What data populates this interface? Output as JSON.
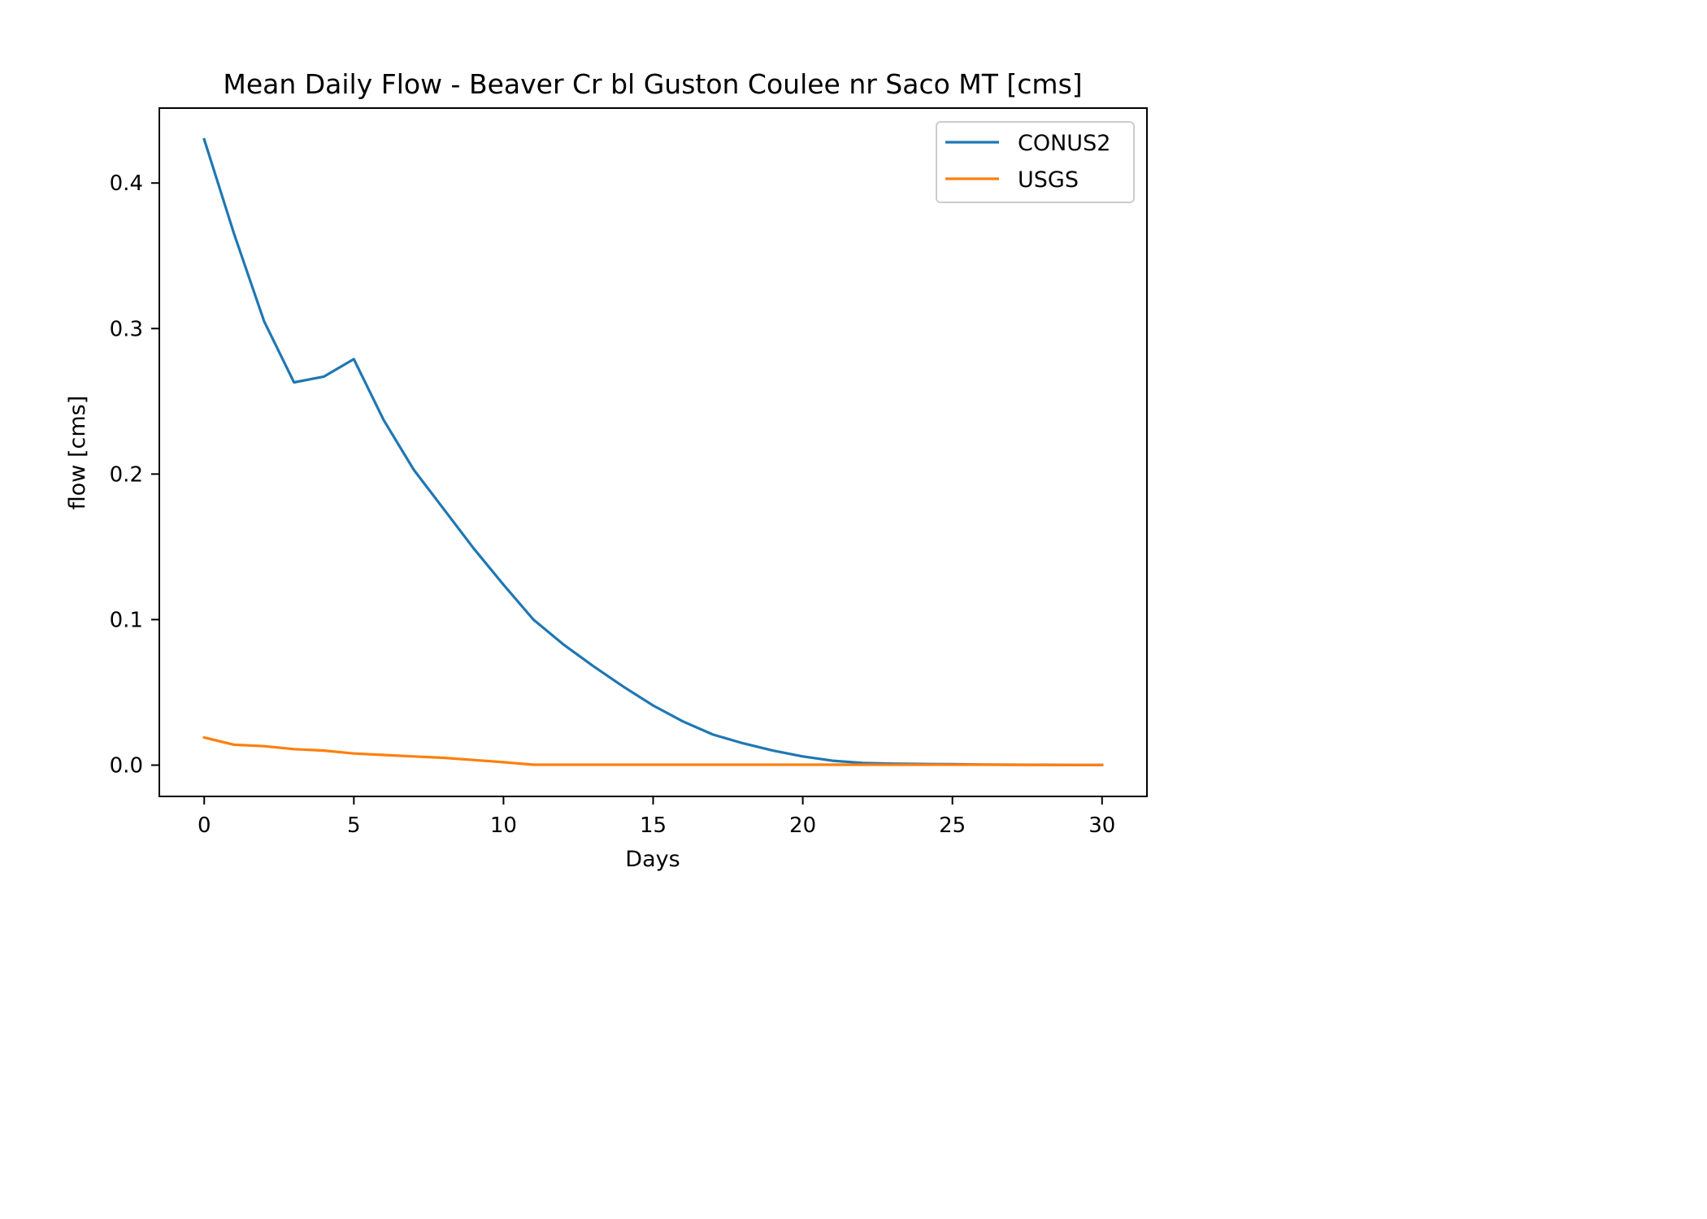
{
  "chart_data": {
    "type": "line",
    "title": "Mean Daily Flow - Beaver Cr bl Guston Coulee nr Saco MT [cms]",
    "xlabel": "Days",
    "ylabel": "flow [cms]",
    "xlim": [
      -1.5,
      31.5
    ],
    "ylim": [
      -0.0215,
      0.4515
    ],
    "xticks": [
      0,
      5,
      10,
      15,
      20,
      25,
      30
    ],
    "xtick_labels": [
      "0",
      "5",
      "10",
      "15",
      "20",
      "25",
      "30"
    ],
    "yticks": [
      0.0,
      0.1,
      0.2,
      0.3,
      0.4
    ],
    "ytick_labels": [
      "0.0",
      "0.1",
      "0.2",
      "0.3",
      "0.4"
    ],
    "grid": false,
    "legend_position": "top-right",
    "x": [
      0,
      1,
      2,
      3,
      4,
      5,
      6,
      7,
      8,
      9,
      10,
      11,
      12,
      13,
      14,
      15,
      16,
      17,
      18,
      19,
      20,
      21,
      22,
      23,
      24,
      25,
      26,
      27,
      28,
      29,
      30
    ],
    "series": [
      {
        "name": "CONUS2",
        "color": "#1f77b4",
        "values": [
          0.43,
          0.365,
          0.305,
          0.263,
          0.267,
          0.279,
          0.237,
          0.203,
          0.176,
          0.149,
          0.124,
          0.1,
          0.083,
          0.068,
          0.054,
          0.041,
          0.03,
          0.021,
          0.015,
          0.01,
          0.006,
          0.003,
          0.0015,
          0.001,
          0.0008,
          0.0006,
          0.0004,
          0.0003,
          0.0002,
          0.0001,
          0.0001
        ]
      },
      {
        "name": "USGS",
        "color": "#ff7f0e",
        "values": [
          0.019,
          0.014,
          0.013,
          0.011,
          0.01,
          0.008,
          0.007,
          0.006,
          0.005,
          0.0035,
          0.002,
          0.0003,
          0.0003,
          0.0003,
          0.0003,
          0.0003,
          0.0003,
          0.0003,
          0.0003,
          0.0003,
          0.0003,
          0.0003,
          0.0003,
          0.0003,
          0.0003,
          0.0003,
          0.0003,
          0.0002,
          0.0001,
          0.0001,
          0.0001
        ]
      }
    ]
  }
}
